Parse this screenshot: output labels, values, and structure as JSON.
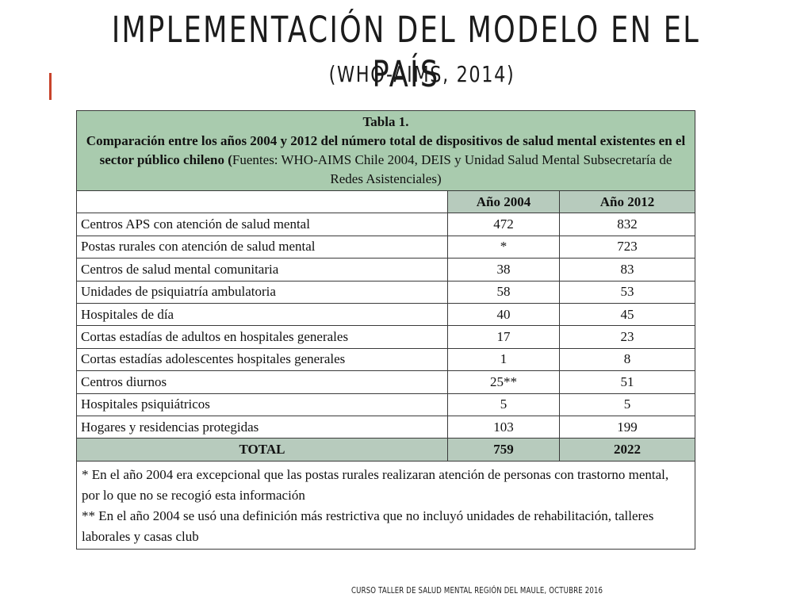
{
  "slide": {
    "title": "IMPLEMENTACIÓN DEL MODELO EN EL PAÍS",
    "subtitle": "(WHO-AIMS, 2014)",
    "accent_color": "#c8432b",
    "footer": "CURSO TALLER DE SALUD MENTAL REGIÓN DEL MAULE, OCTUBRE 2016"
  },
  "table": {
    "caption_title": "Tabla 1.",
    "caption_bold": "Comparación entre los años 2004 y 2012 del número total de dispositivos de salud mental existentes en el sector público chileno (",
    "caption_regular": "Fuentes: WHO-AIMS Chile 2004, DEIS y Unidad Salud Mental Subsecretaría de Redes Asistenciales)",
    "header_bg": "#a9cbae",
    "columns": [
      "",
      "Año 2004",
      "Año 2012"
    ],
    "rows": [
      {
        "label": "Centros APS con atención de salud mental",
        "y2004": "472",
        "y2012": "832"
      },
      {
        "label": "Postas rurales con atención de salud mental",
        "y2004": "*",
        "y2012": "723"
      },
      {
        "label": "Centros de salud mental comunitaria",
        "y2004": "38",
        "y2012": "83"
      },
      {
        "label": "Unidades de psiquiatría ambulatoria",
        "y2004": "58",
        "y2012": "53"
      },
      {
        "label": "Hospitales de día",
        "y2004": "40",
        "y2012": "45"
      },
      {
        "label": "Cortas estadías de adultos en hospitales generales",
        "y2004": "17",
        "y2012": "23"
      },
      {
        "label": "Cortas estadías adolescentes hospitales generales",
        "y2004": "1",
        "y2012": "8"
      },
      {
        "label": "Centros diurnos",
        "y2004": "25**",
        "y2012": "51"
      },
      {
        "label": "Hospitales psiquiátricos",
        "y2004": "5",
        "y2012": "5"
      },
      {
        "label": "Hogares y residencias protegidas",
        "y2004": "103",
        "y2012": "199"
      }
    ],
    "total": {
      "label": "TOTAL",
      "y2004": "759",
      "y2012": "2022"
    },
    "notes": [
      "* En el año 2004 era excepcional que las postas rurales realizaran atención de personas con trastorno mental, por lo que no se recogió esta información",
      "** En el año 2004 se usó una definición más restrictiva que no incluyó unidades de rehabilitación, talleres laborales y casas club"
    ]
  }
}
